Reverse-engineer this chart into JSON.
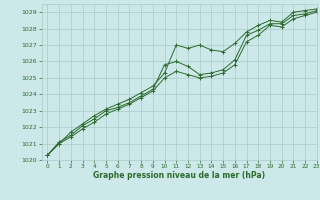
{
  "title": "Graphe pression niveau de la mer (hPa)",
  "bg_color": "#cce8e8",
  "line_color": "#2d6a2d",
  "grid_color": "#aacccc",
  "xlim": [
    -0.5,
    23
  ],
  "ylim": [
    1020,
    1029.5
  ],
  "yticks": [
    1020,
    1021,
    1022,
    1023,
    1024,
    1025,
    1026,
    1027,
    1028,
    1029
  ],
  "xticks": [
    0,
    1,
    2,
    3,
    4,
    5,
    6,
    7,
    8,
    9,
    10,
    11,
    12,
    13,
    14,
    15,
    16,
    17,
    18,
    19,
    20,
    21,
    22,
    23
  ],
  "line1_x": [
    0,
    1,
    2,
    3,
    4,
    5,
    6,
    7,
    8,
    9,
    10,
    11,
    12,
    13,
    14,
    15,
    16,
    17,
    18,
    19,
    20,
    21,
    22,
    23
  ],
  "line1_y": [
    1020.3,
    1021.0,
    1021.7,
    1022.2,
    1022.7,
    1023.1,
    1023.4,
    1023.7,
    1024.1,
    1024.5,
    1025.3,
    1027.0,
    1026.8,
    1027.0,
    1026.7,
    1026.6,
    1027.1,
    1027.8,
    1028.2,
    1028.5,
    1028.4,
    1029.0,
    1029.1,
    1029.2
  ],
  "line2_x": [
    0,
    1,
    2,
    3,
    4,
    5,
    6,
    7,
    8,
    9,
    10,
    11,
    12,
    13,
    14,
    15,
    16,
    17,
    18,
    19,
    20,
    21,
    22,
    23
  ],
  "line2_y": [
    1020.3,
    1021.1,
    1021.5,
    1022.1,
    1022.5,
    1023.0,
    1023.2,
    1023.5,
    1023.9,
    1024.3,
    1025.8,
    1026.0,
    1025.7,
    1025.2,
    1025.3,
    1025.5,
    1026.1,
    1027.6,
    1027.9,
    1028.3,
    1028.3,
    1028.8,
    1028.9,
    1029.1
  ],
  "line3_x": [
    0,
    1,
    2,
    3,
    4,
    5,
    6,
    7,
    8,
    9,
    10,
    11,
    12,
    13,
    14,
    15,
    16,
    17,
    18,
    19,
    20,
    21,
    22,
    23
  ],
  "line3_y": [
    1020.3,
    1021.0,
    1021.4,
    1021.9,
    1022.3,
    1022.8,
    1023.1,
    1023.4,
    1023.8,
    1024.2,
    1025.0,
    1025.4,
    1025.2,
    1025.0,
    1025.1,
    1025.3,
    1025.8,
    1027.2,
    1027.6,
    1028.2,
    1028.1,
    1028.6,
    1028.8,
    1029.0
  ]
}
